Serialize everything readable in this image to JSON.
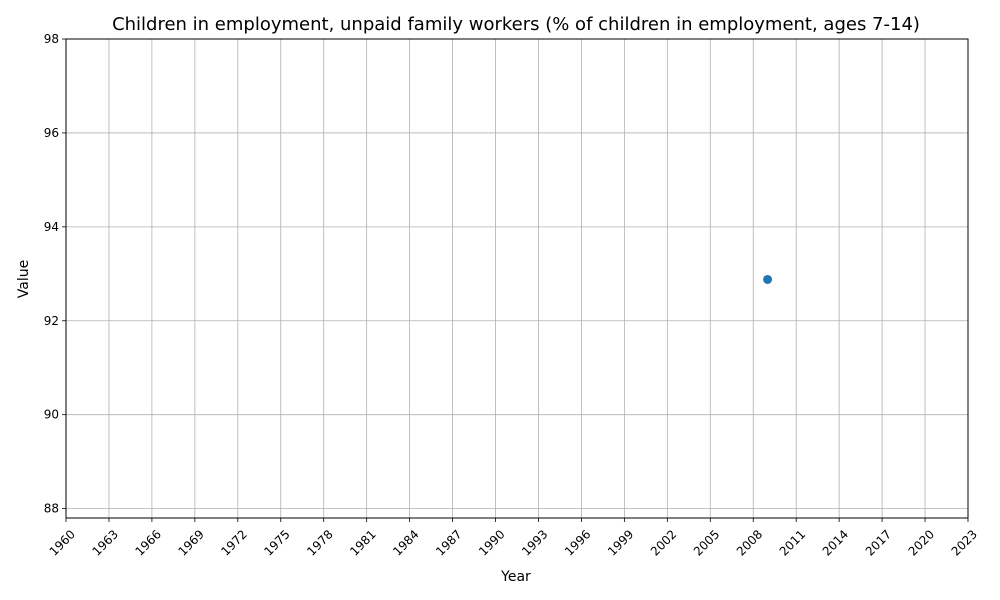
{
  "chart_data": {
    "type": "scatter",
    "title": "Children in employment, unpaid family workers (% of children in employment, ages 7-14)",
    "xlabel": "Year",
    "ylabel": "Value",
    "xlim": [
      1960,
      2023
    ],
    "ylim": [
      87.8,
      98
    ],
    "x_ticks": [
      1960,
      1963,
      1966,
      1969,
      1972,
      1975,
      1978,
      1981,
      1984,
      1987,
      1990,
      1993,
      1996,
      1999,
      2002,
      2005,
      2008,
      2011,
      2014,
      2017,
      2020,
      2023
    ],
    "y_ticks": [
      88,
      90,
      92,
      94,
      96,
      98
    ],
    "grid": true,
    "series": [
      {
        "x": [
          2009
        ],
        "y": [
          92.88
        ],
        "color": "#1f77b4"
      }
    ]
  }
}
